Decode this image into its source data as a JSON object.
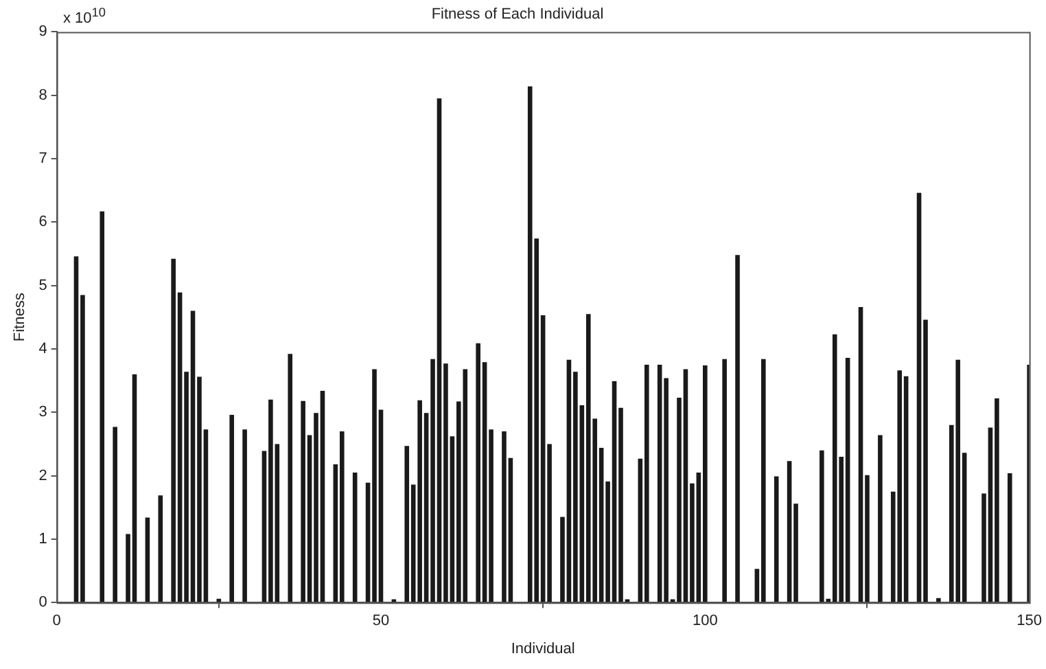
{
  "chart_data": {
    "type": "bar",
    "title": "Fitness of Each Individual",
    "xlabel": "Individual",
    "ylabel": "Fitness",
    "annotations": [
      "x 10$^{10}$"
    ],
    "x": [
      1,
      2,
      3,
      4,
      5,
      6,
      7,
      8,
      9,
      10,
      11,
      12,
      13,
      14,
      15,
      16,
      17,
      18,
      19,
      20,
      21,
      22,
      23,
      24,
      25,
      26,
      27,
      28,
      29,
      30,
      31,
      32,
      33,
      34,
      35,
      36,
      37,
      38,
      39,
      40,
      41,
      42,
      43,
      44,
      45,
      46,
      47,
      48,
      49,
      50,
      51,
      52,
      53,
      54,
      55,
      56,
      57,
      58,
      59,
      60,
      61,
      62,
      63,
      64,
      65,
      66,
      67,
      68,
      69,
      70,
      71,
      72,
      73,
      74,
      75,
      76,
      77,
      78,
      79,
      80,
      81,
      82,
      83,
      84,
      85,
      86,
      87,
      88,
      89,
      90,
      91,
      92,
      93,
      94,
      95,
      96,
      97,
      98,
      99,
      100,
      101,
      102,
      103,
      104,
      105,
      106,
      107,
      108,
      109,
      110,
      111,
      112,
      113,
      114,
      115,
      116,
      117,
      118,
      119,
      120,
      121,
      122,
      123,
      124,
      125,
      126,
      127,
      128,
      129,
      130,
      131,
      132,
      133,
      134,
      135,
      136,
      137,
      138,
      139,
      140,
      141,
      142,
      143,
      144,
      145,
      146,
      147,
      148,
      149,
      150
    ],
    "values": [
      0,
      0,
      5.46,
      4.85,
      0,
      0,
      6.17,
      0,
      2.77,
      0,
      1.08,
      3.6,
      0,
      1.34,
      0,
      1.69,
      0,
      5.42,
      4.89,
      3.64,
      4.6,
      3.56,
      2.73,
      0,
      0.06,
      0,
      2.96,
      0,
      2.73,
      0,
      0,
      2.39,
      3.2,
      2.5,
      0,
      3.92,
      0,
      3.18,
      2.64,
      2.99,
      3.34,
      0,
      2.18,
      2.7,
      0,
      2.05,
      0,
      1.89,
      3.68,
      3.04,
      0,
      0.05,
      0,
      2.47,
      1.86,
      3.19,
      2.99,
      3.84,
      7.95,
      3.77,
      2.62,
      3.17,
      3.68,
      0,
      4.09,
      3.79,
      2.73,
      0,
      2.7,
      2.28,
      0,
      0,
      8.14,
      5.74,
      4.53,
      2.5,
      0,
      1.35,
      3.83,
      3.64,
      3.11,
      4.55,
      2.9,
      2.44,
      1.91,
      3.49,
      3.07,
      0.05,
      0,
      2.27,
      3.75,
      0,
      3.75,
      3.54,
      0.05,
      3.23,
      3.68,
      1.88,
      2.05,
      3.74,
      0,
      0,
      3.84,
      0,
      5.48,
      0,
      0,
      0.53,
      3.84,
      0,
      1.99,
      0,
      2.23,
      1.56,
      0,
      0,
      0,
      2.4,
      0.06,
      4.23,
      2.3,
      3.86,
      0,
      4.66,
      2.01,
      0,
      2.64,
      0,
      1.75,
      3.66,
      3.57,
      0,
      6.46,
      4.46,
      0,
      0.07,
      0,
      2.8,
      3.83,
      2.36,
      0,
      0,
      1.72,
      2.76,
      3.22,
      0,
      2.04,
      0,
      0,
      3.75
    ],
    "color": "#1a1a1a",
    "xlim": [
      0,
      150
    ],
    "xticks": [
      0,
      50,
      100,
      150
    ],
    "ylim": [
      0,
      9
    ],
    "yticks": [
      0,
      1,
      2,
      3,
      4,
      5,
      6,
      7,
      8,
      9
    ]
  }
}
